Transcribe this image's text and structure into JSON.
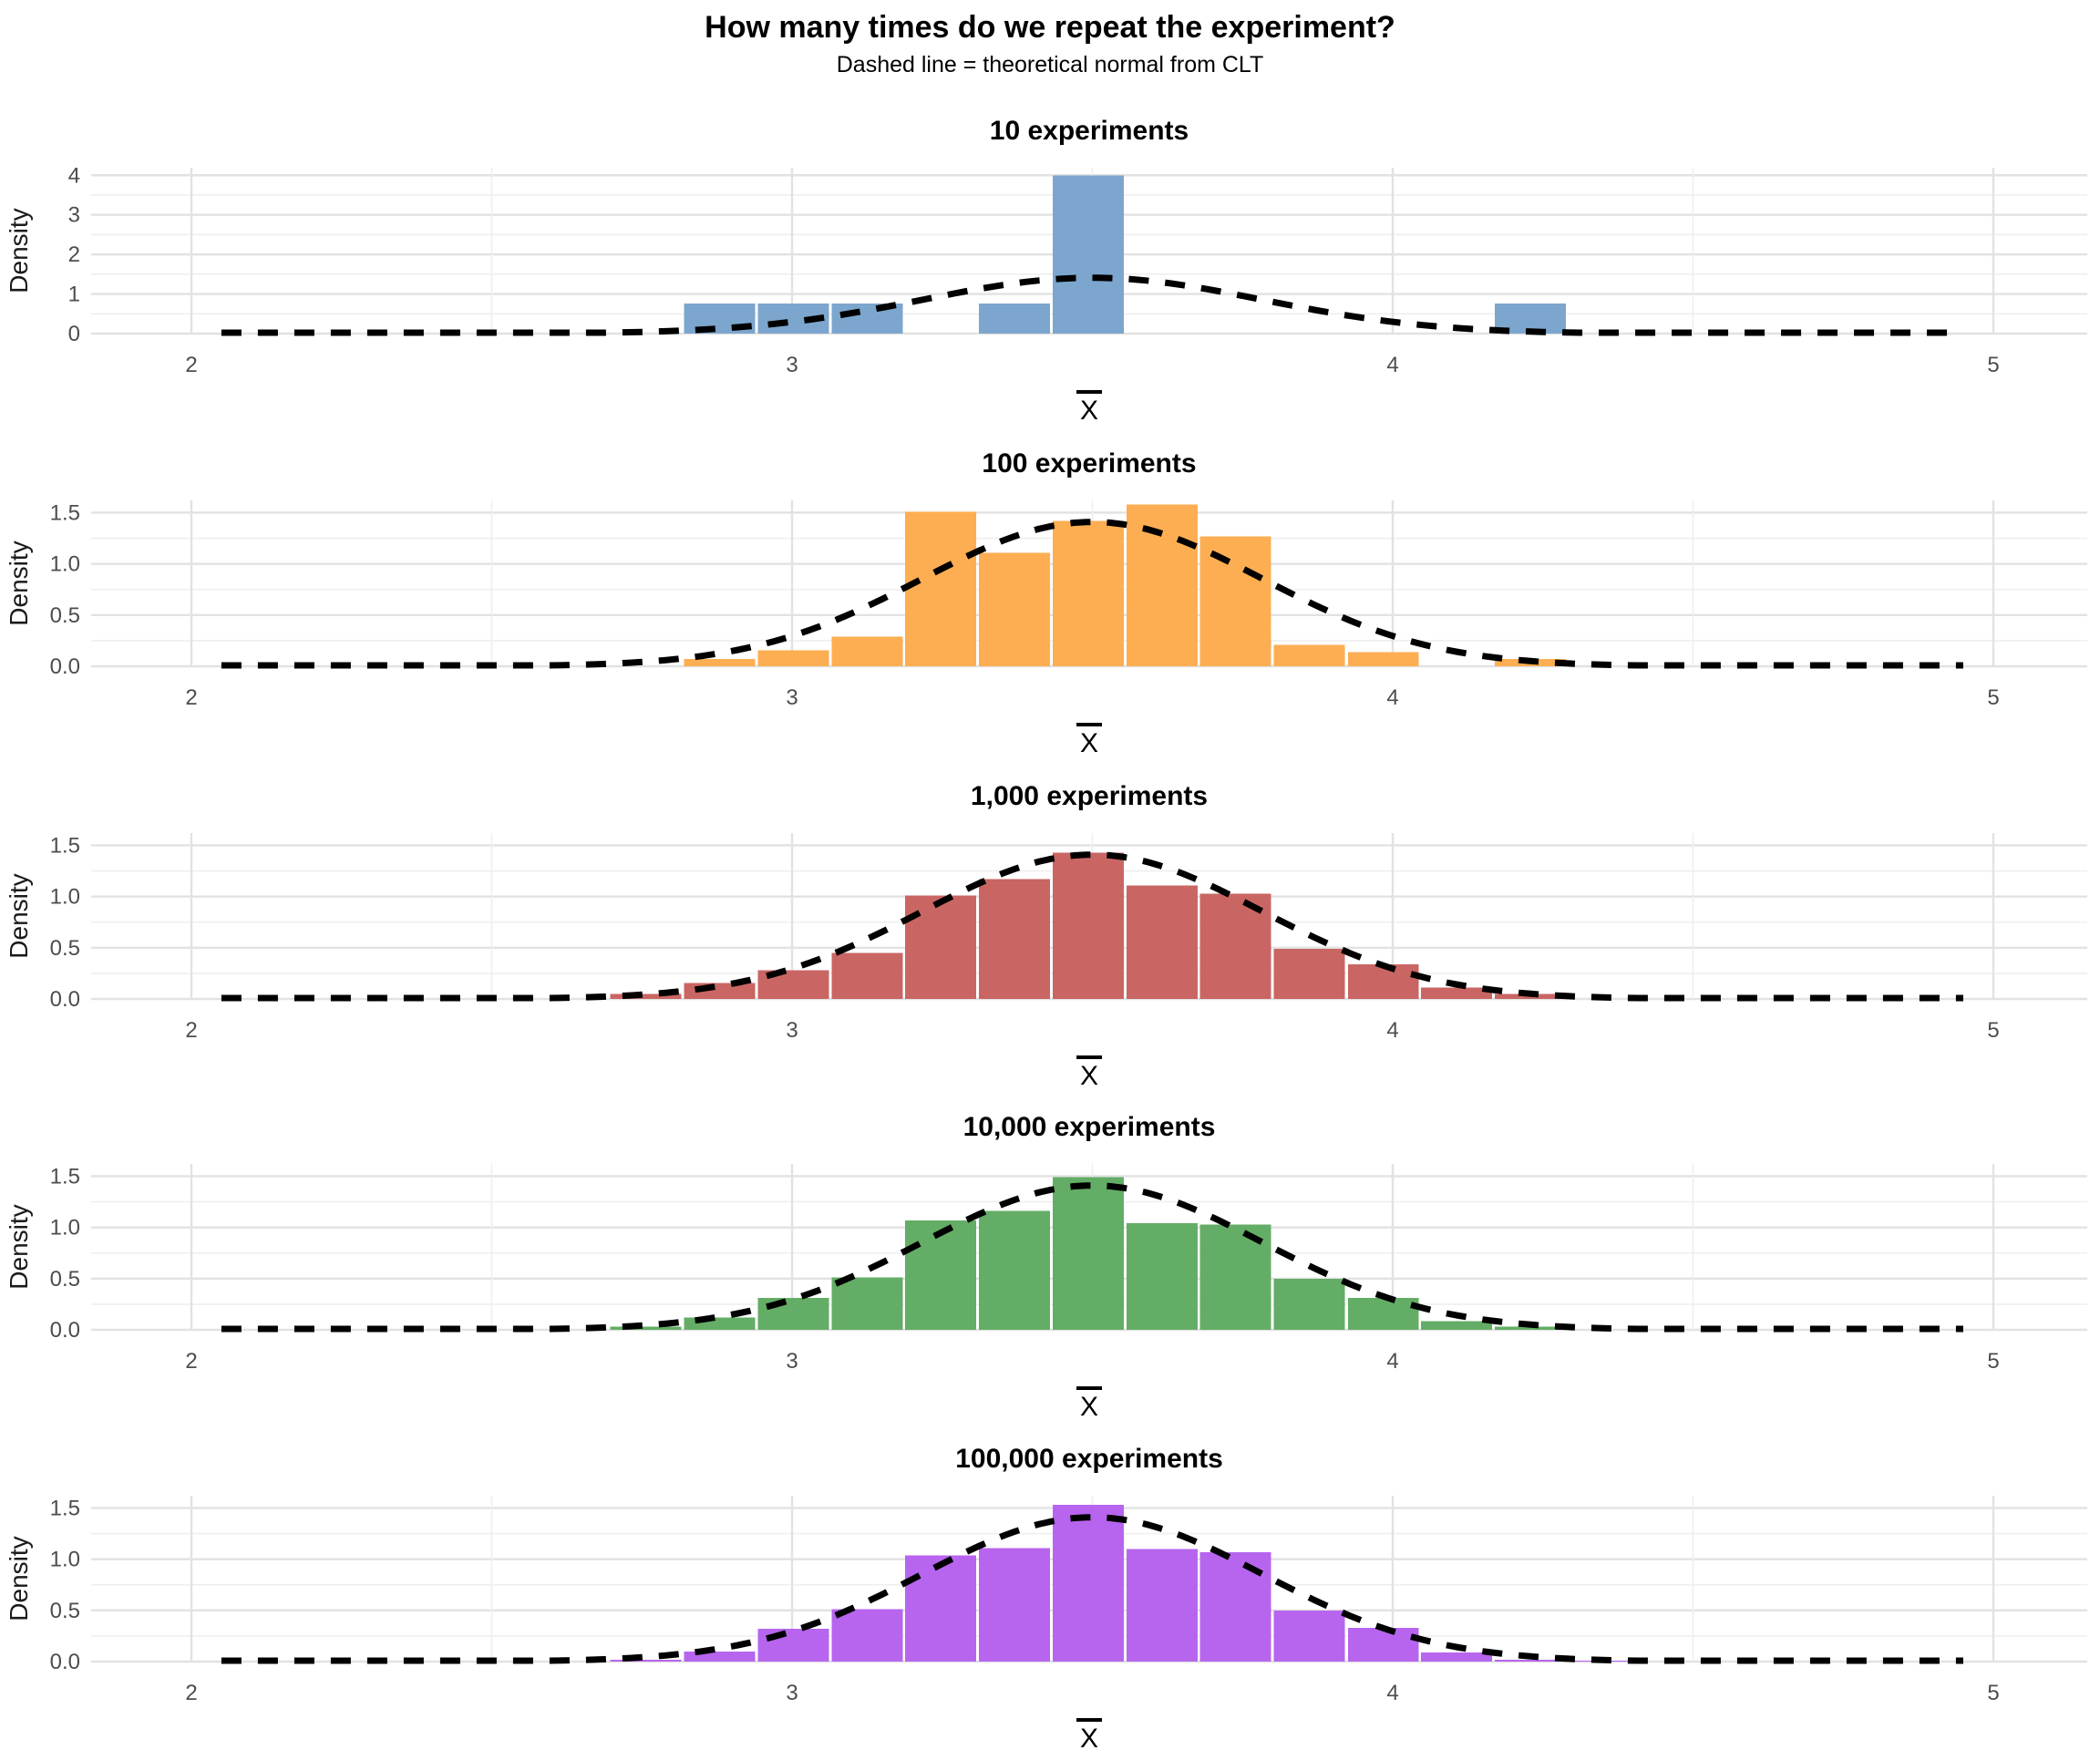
{
  "title": "How many times do we repeat the experiment?",
  "subtitle": "Dashed line = theoretical normal from CLT",
  "axes": {
    "x_label": "X",
    "x_label_overbar": true,
    "y_label": "Density",
    "x_ticks": [
      "2",
      "3",
      "4",
      "5"
    ],
    "x_tick_values": [
      2,
      3,
      4,
      5
    ],
    "x_minor_values": [
      2.5,
      3.5,
      4.5
    ],
    "xlim": [
      1.85,
      5.15
    ]
  },
  "overlay_curve": {
    "type": "normal_pdf",
    "label": "theoretical normal from CLT",
    "mean": 3.5,
    "sd": 0.283,
    "peak_density": 1.41,
    "line_style": "dashed",
    "color": "#000000"
  },
  "style": {
    "grid_major_color": "#e2e2e2",
    "grid_minor_color": "#efefef",
    "tick_label_color": "#4d4d4d",
    "axis_title_color": "#1a1a1a",
    "bar_edge_color": "#ffffff"
  },
  "binwidth": 0.1228,
  "chart_data": [
    {
      "type": "bar",
      "title": "10 experiments",
      "n_experiments": 10,
      "color": "#7ca6cd",
      "xlabel": "X̄",
      "ylabel": "Density",
      "ylim": [
        0,
        4.19
      ],
      "y_ticks": [
        "0",
        "1",
        "2",
        "3",
        "4"
      ],
      "y_tick_values": [
        0,
        1,
        2,
        3,
        4
      ],
      "bars": [
        [
          2.818,
          0.76
        ],
        [
          2.941,
          0.76
        ],
        [
          3.064,
          0.76
        ],
        [
          3.309,
          0.76
        ],
        [
          3.432,
          4.0
        ],
        [
          4.168,
          0.76
        ]
      ]
    },
    {
      "type": "bar",
      "title": "100 experiments",
      "n_experiments": 100,
      "color": "#fdae52",
      "xlabel": "X̄",
      "ylabel": "Density",
      "ylim": [
        0,
        1.62
      ],
      "y_ticks": [
        "0.0",
        "0.5",
        "1.0",
        "1.5"
      ],
      "y_tick_values": [
        0,
        0.5,
        1.0,
        1.5
      ],
      "bars": [
        [
          2.818,
          0.07
        ],
        [
          2.941,
          0.155
        ],
        [
          3.064,
          0.29
        ],
        [
          3.186,
          1.51
        ],
        [
          3.309,
          1.11
        ],
        [
          3.432,
          1.42
        ],
        [
          3.555,
          1.58
        ],
        [
          3.677,
          1.27
        ],
        [
          3.8,
          0.21
        ],
        [
          3.923,
          0.14
        ],
        [
          4.168,
          0.07
        ]
      ]
    },
    {
      "type": "bar",
      "title": "1,000 experiments",
      "n_experiments": 1000,
      "color": "#c96664",
      "xlabel": "X̄",
      "ylabel": "Density",
      "ylim": [
        0,
        1.62
      ],
      "y_ticks": [
        "0.0",
        "0.5",
        "1.0",
        "1.5"
      ],
      "y_tick_values": [
        0,
        0.5,
        1.0,
        1.5
      ],
      "bars": [
        [
          2.695,
          0.05
        ],
        [
          2.818,
          0.155
        ],
        [
          2.941,
          0.28
        ],
        [
          3.064,
          0.45
        ],
        [
          3.186,
          1.01
        ],
        [
          3.309,
          1.17
        ],
        [
          3.432,
          1.43
        ],
        [
          3.555,
          1.11
        ],
        [
          3.677,
          1.03
        ],
        [
          3.8,
          0.49
        ],
        [
          3.923,
          0.34
        ],
        [
          4.045,
          0.11
        ],
        [
          4.168,
          0.05
        ]
      ]
    },
    {
      "type": "bar",
      "title": "10,000 experiments",
      "n_experiments": 10000,
      "color": "#64ad66",
      "xlabel": "X̄",
      "ylabel": "Density",
      "ylim": [
        0,
        1.62
      ],
      "y_ticks": [
        "0.0",
        "0.5",
        "1.0",
        "1.5"
      ],
      "y_tick_values": [
        0,
        0.5,
        1.0,
        1.5
      ],
      "bars": [
        [
          2.695,
          0.03
        ],
        [
          2.818,
          0.12
        ],
        [
          2.941,
          0.31
        ],
        [
          3.064,
          0.51
        ],
        [
          3.186,
          1.07
        ],
        [
          3.309,
          1.16
        ],
        [
          3.432,
          1.49
        ],
        [
          3.555,
          1.04
        ],
        [
          3.677,
          1.03
        ],
        [
          3.8,
          0.5
        ],
        [
          3.923,
          0.31
        ],
        [
          4.045,
          0.085
        ],
        [
          4.168,
          0.03
        ]
      ]
    },
    {
      "type": "bar",
      "title": "100,000 experiments",
      "n_experiments": 100000,
      "color": "#b765ee",
      "xlabel": "X̄",
      "ylabel": "Density",
      "ylim": [
        0,
        1.62
      ],
      "y_ticks": [
        "0.0",
        "0.5",
        "1.0",
        "1.5"
      ],
      "y_tick_values": [
        0,
        0.5,
        1.0,
        1.5
      ],
      "bars": [
        [
          2.695,
          0.02
        ],
        [
          2.818,
          0.1
        ],
        [
          2.941,
          0.32
        ],
        [
          3.064,
          0.51
        ],
        [
          3.186,
          1.035
        ],
        [
          3.309,
          1.11
        ],
        [
          3.432,
          1.53
        ],
        [
          3.555,
          1.1
        ],
        [
          3.677,
          1.07
        ],
        [
          3.8,
          0.5
        ],
        [
          3.923,
          0.33
        ],
        [
          4.045,
          0.09
        ],
        [
          4.168,
          0.02
        ],
        [
          4.291,
          0.01
        ]
      ]
    }
  ]
}
